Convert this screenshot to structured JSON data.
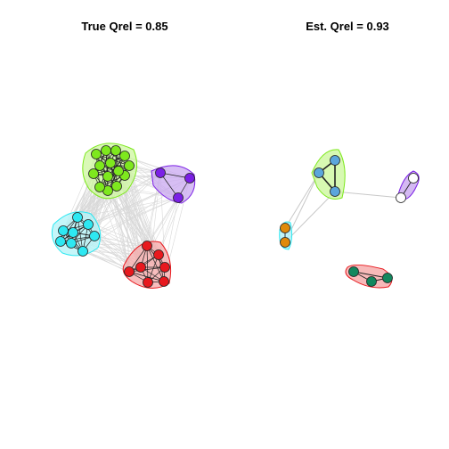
{
  "panels": {
    "left": {
      "title": "True Qrel = 0.85"
    },
    "right": {
      "title": "Est. Qrel = 0.93"
    }
  },
  "colors": {
    "green": "#7ee81e",
    "purple": "#7b1fe6",
    "cyan": "#2ee8f2",
    "red": "#e8191e",
    "blue": "#5ba6dc",
    "orange": "#e08a0b",
    "white": "#ffffff",
    "teal": "#13875e",
    "hull_green": "#cdf79f",
    "hull_purple": "#c9a8f0",
    "hull_cyan": "#b2f3f7",
    "hull_red": "#f5a8a8",
    "weak_edge": "#d8d8d8",
    "strong_edge": "#222222"
  },
  "left_graph": {
    "communities": [
      {
        "name": "green",
        "node_count": 14
      },
      {
        "name": "purple",
        "node_count": 3
      },
      {
        "name": "cyan",
        "node_count": 8
      },
      {
        "name": "red",
        "node_count": 7
      }
    ]
  },
  "right_graph": {
    "communities": [
      {
        "name": "green-blue",
        "node_count": 3
      },
      {
        "name": "purple-white",
        "node_count": 2
      },
      {
        "name": "cyan-orange",
        "node_count": 2
      },
      {
        "name": "red-teal",
        "node_count": 3
      }
    ]
  }
}
